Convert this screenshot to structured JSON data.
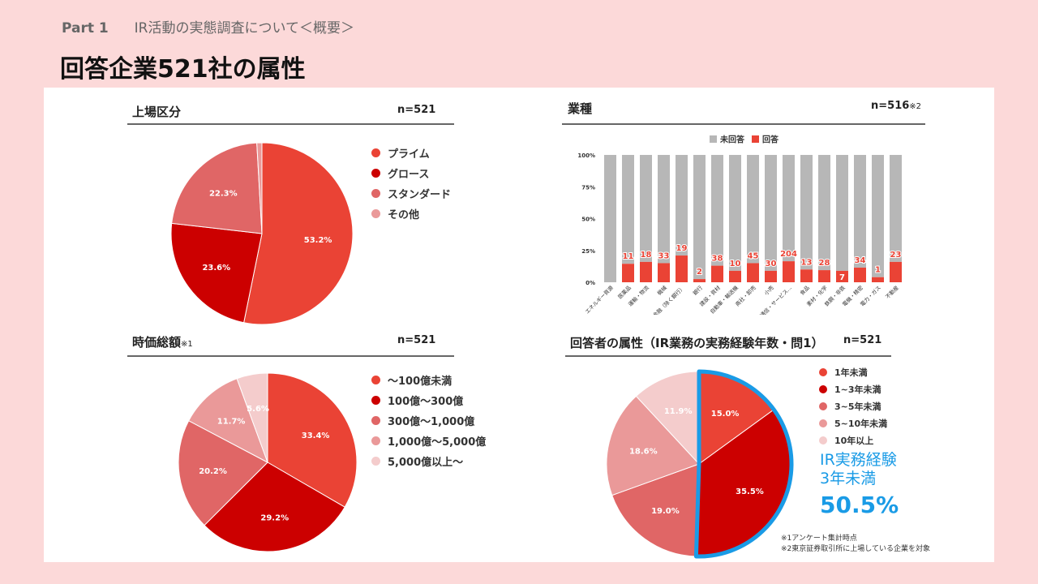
{
  "header": {
    "part": "Part 1",
    "subtitle": "IR活動の実態調査について＜概要＞",
    "title": "回答企業521社の属性"
  },
  "panels": {
    "listing": {
      "title": "上場区分",
      "note": "",
      "n": "n=521",
      "n_note": ""
    },
    "industry": {
      "title": "業種",
      "note": "",
      "n": "n=516",
      "n_note": "※2"
    },
    "market_cap": {
      "title": "時価総額",
      "note": "※1",
      "n": "n=521",
      "n_note": ""
    },
    "respondent": {
      "title": "回答者の属性（IR業務の実務経験年数・問1）",
      "note": "",
      "n": "n=521",
      "n_note": ""
    }
  },
  "callout": {
    "line1": "IR実務経験",
    "line2": "3年未満",
    "value": "50.5%"
  },
  "notes": [
    "※1アンケート集計時点",
    "※2東京証券取引所に上場している企業を対象"
  ],
  "chart_data": [
    {
      "id": "listing",
      "type": "pie",
      "title": "上場区分",
      "legend": "right",
      "series": [
        {
          "name": "プライム",
          "value": 53.2,
          "label": "53.2%",
          "color": "#ea4335"
        },
        {
          "name": "グロース",
          "value": 23.6,
          "label": "23.6%",
          "color": "#cc0000"
        },
        {
          "name": "スタンダード",
          "value": 22.3,
          "label": "22.3%",
          "color": "#e06666"
        },
        {
          "name": "その他",
          "value": 0.9,
          "label": "",
          "color": "#ea9999"
        }
      ]
    },
    {
      "id": "industry",
      "type": "bar",
      "stacked": true,
      "percent": true,
      "title": "業種",
      "legend": "top",
      "legend_entries": [
        {
          "name": "未回答",
          "color": "#b7b7b7"
        },
        {
          "name": "回答",
          "color": "#ea4335"
        }
      ],
      "ylim": [
        0,
        100
      ],
      "yticks": [
        "0%",
        "25%",
        "50%",
        "75%",
        "100%"
      ],
      "categories": [
        "エネルギー資源",
        "医薬品",
        "運輸・物流",
        "機械",
        "金融（除く銀行）",
        "銀行",
        "建設・資材",
        "自動車・輸送機",
        "商社・卸売",
        "小売",
        "情報通信・サービス...",
        "食品",
        "素材・化学",
        "鉄鋼・非鉄",
        "電機・精密",
        "電力・ガス",
        "不動産"
      ],
      "responded_pct": [
        0,
        14.5,
        16,
        15,
        21,
        2.5,
        13,
        9,
        15,
        9,
        16.5,
        10,
        9.5,
        9,
        11.5,
        4,
        16
      ],
      "responded_counts": [
        "",
        "11",
        "18",
        "33",
        "19",
        "2",
        "38",
        "10",
        "45",
        "30",
        "204",
        "13",
        "28",
        "7",
        "34",
        "1",
        "23"
      ]
    },
    {
      "id": "market_cap",
      "type": "pie",
      "title": "時価総額",
      "legend": "right",
      "series": [
        {
          "name": "～100億未満",
          "value": 33.4,
          "label": "33.4%",
          "color": "#ea4335"
        },
        {
          "name": "100億～300億",
          "value": 29.2,
          "label": "29.2%",
          "color": "#cc0000"
        },
        {
          "name": "300億～1,000億",
          "value": 20.2,
          "label": "20.2%",
          "color": "#e06666"
        },
        {
          "name": "1,000億～5,000億",
          "value": 11.7,
          "label": "11.7%",
          "color": "#ea9999"
        },
        {
          "name": "5,000億以上～",
          "value": 5.6,
          "label": "5.6%",
          "color": "#f4cccc"
        }
      ]
    },
    {
      "id": "respondent",
      "type": "pie",
      "title": "回答者の属性（IR業務の実務経験年数・問1）",
      "legend": "right",
      "highlight": [
        "1年未満",
        "1~3年未満"
      ],
      "series": [
        {
          "name": "1年未満",
          "value": 15.0,
          "label": "15.0%",
          "color": "#ea4335"
        },
        {
          "name": "1~3年未満",
          "value": 35.5,
          "label": "35.5%",
          "color": "#cc0000"
        },
        {
          "name": "3~5年未満",
          "value": 19.0,
          "label": "19.0%",
          "color": "#e06666"
        },
        {
          "name": "5~10年未満",
          "value": 18.6,
          "label": "18.6%",
          "color": "#ea9999"
        },
        {
          "name": "10年以上",
          "value": 11.9,
          "label": "11.9%",
          "color": "#f4cccc"
        }
      ]
    }
  ]
}
